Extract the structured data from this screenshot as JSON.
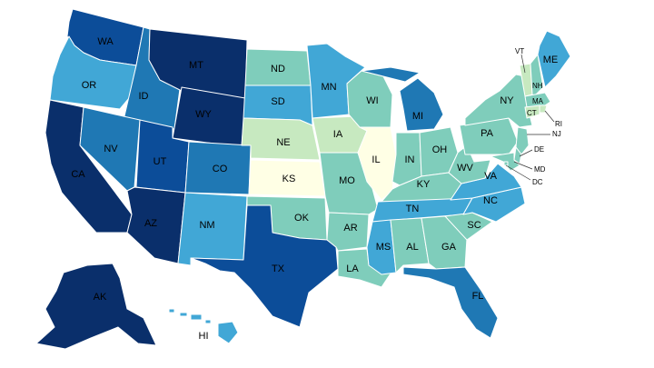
{
  "palette": {
    "c1": "#ffffe5",
    "c2": "#c7e9c0",
    "c3": "#7fcdbb",
    "c4": "#41a7d6",
    "c5": "#1f78b4",
    "c6": "#0c4d99",
    "c7": "#0a2f6b",
    "border": "#ffffff"
  },
  "states": [
    {
      "abbr": "WA",
      "level": 6
    },
    {
      "abbr": "OR",
      "level": 4
    },
    {
      "abbr": "CA",
      "level": 7
    },
    {
      "abbr": "ID",
      "level": 5
    },
    {
      "abbr": "NV",
      "level": 5
    },
    {
      "abbr": "MT",
      "level": 7
    },
    {
      "abbr": "WY",
      "level": 7
    },
    {
      "abbr": "UT",
      "level": 6
    },
    {
      "abbr": "AZ",
      "level": 7
    },
    {
      "abbr": "CO",
      "level": 5
    },
    {
      "abbr": "NM",
      "level": 4
    },
    {
      "abbr": "ND",
      "level": 3
    },
    {
      "abbr": "SD",
      "level": 4
    },
    {
      "abbr": "NE",
      "level": 2
    },
    {
      "abbr": "KS",
      "level": 1
    },
    {
      "abbr": "OK",
      "level": 3
    },
    {
      "abbr": "TX",
      "level": 6
    },
    {
      "abbr": "MN",
      "level": 4
    },
    {
      "abbr": "IA",
      "level": 2
    },
    {
      "abbr": "MO",
      "level": 3
    },
    {
      "abbr": "AR",
      "level": 3
    },
    {
      "abbr": "LA",
      "level": 3
    },
    {
      "abbr": "WI",
      "level": 3
    },
    {
      "abbr": "IL",
      "level": 1
    },
    {
      "abbr": "MI",
      "level": 5
    },
    {
      "abbr": "IN",
      "level": 3
    },
    {
      "abbr": "OH",
      "level": 3
    },
    {
      "abbr": "KY",
      "level": 3
    },
    {
      "abbr": "TN",
      "level": 4
    },
    {
      "abbr": "MS",
      "level": 4
    },
    {
      "abbr": "AL",
      "level": 3
    },
    {
      "abbr": "GA",
      "level": 3
    },
    {
      "abbr": "FL",
      "level": 5
    },
    {
      "abbr": "SC",
      "level": 3
    },
    {
      "abbr": "NC",
      "level": 4
    },
    {
      "abbr": "VA",
      "level": 4
    },
    {
      "abbr": "WV",
      "level": 3
    },
    {
      "abbr": "PA",
      "level": 3
    },
    {
      "abbr": "NY",
      "level": 3
    },
    {
      "abbr": "VT",
      "level": 2
    },
    {
      "abbr": "NH",
      "level": 3
    },
    {
      "abbr": "ME",
      "level": 4
    },
    {
      "abbr": "MA",
      "level": 3
    },
    {
      "abbr": "RI",
      "level": 2
    },
    {
      "abbr": "CT",
      "level": 2
    },
    {
      "abbr": "NJ",
      "level": 3
    },
    {
      "abbr": "DE",
      "level": 3
    },
    {
      "abbr": "MD",
      "level": 3
    },
    {
      "abbr": "DC",
      "level": 3
    },
    {
      "abbr": "AK",
      "level": 7
    },
    {
      "abbr": "HI",
      "level": 4
    }
  ]
}
